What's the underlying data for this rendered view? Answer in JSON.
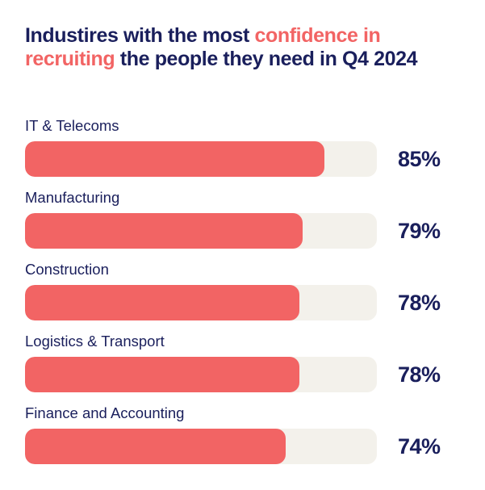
{
  "title": {
    "part1": "Industires with the most ",
    "highlight": "confidence in recruiting",
    "part2": " the people they need in Q4 2024"
  },
  "colors": {
    "bar": "#f26464",
    "track": "#f3f1eb",
    "text": "#1a1f5c",
    "highlight": "#f26464"
  },
  "chart_data": {
    "type": "bar",
    "orientation": "horizontal",
    "title": "Industires with the most confidence in recruiting the people they need in Q4 2024",
    "categories": [
      "IT & Telecoms",
      "Manufacturing",
      "Construction",
      "Logistics & Transport",
      "Finance and Accounting"
    ],
    "values": [
      85,
      79,
      78,
      78,
      74
    ],
    "value_labels": [
      "85%",
      "79%",
      "78%",
      "78%",
      "74%"
    ],
    "xlim": [
      0,
      100
    ],
    "unit": "%",
    "grid": false,
    "legend": "none"
  }
}
